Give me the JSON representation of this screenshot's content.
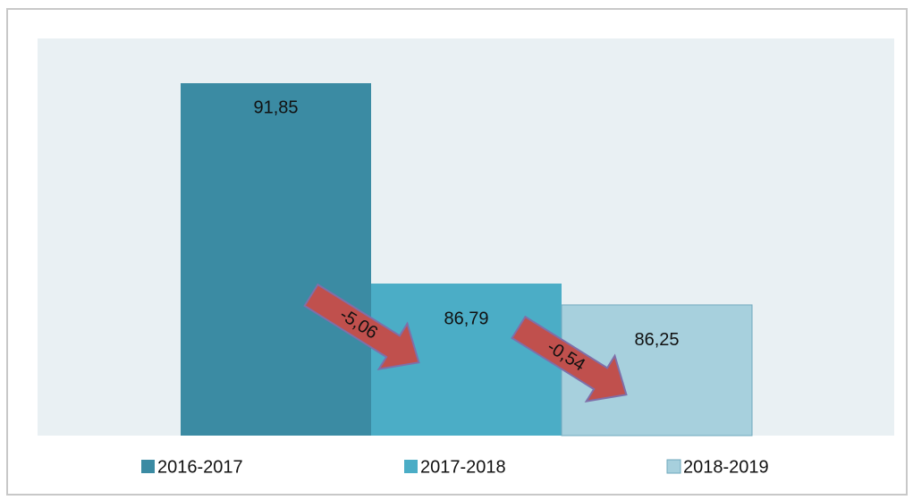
{
  "chart_data": {
    "type": "bar",
    "series": [
      {
        "name": "2016-2017",
        "color": "#3b8ba3",
        "values": [
          91.85
        ],
        "value_labels": [
          "91,85"
        ]
      },
      {
        "name": "2017-2018",
        "color": "#4badc6",
        "values": [
          86.79
        ],
        "value_labels": [
          "86,79"
        ]
      },
      {
        "name": "2018-2019",
        "color": "#a7d0dd",
        "values": [
          86.25
        ],
        "value_labels": [
          "86,25"
        ]
      }
    ],
    "ylim": [
      82.95,
      92.98
    ],
    "annotations": [
      {
        "text": "-5,06"
      },
      {
        "text": "-0,54"
      }
    ]
  }
}
